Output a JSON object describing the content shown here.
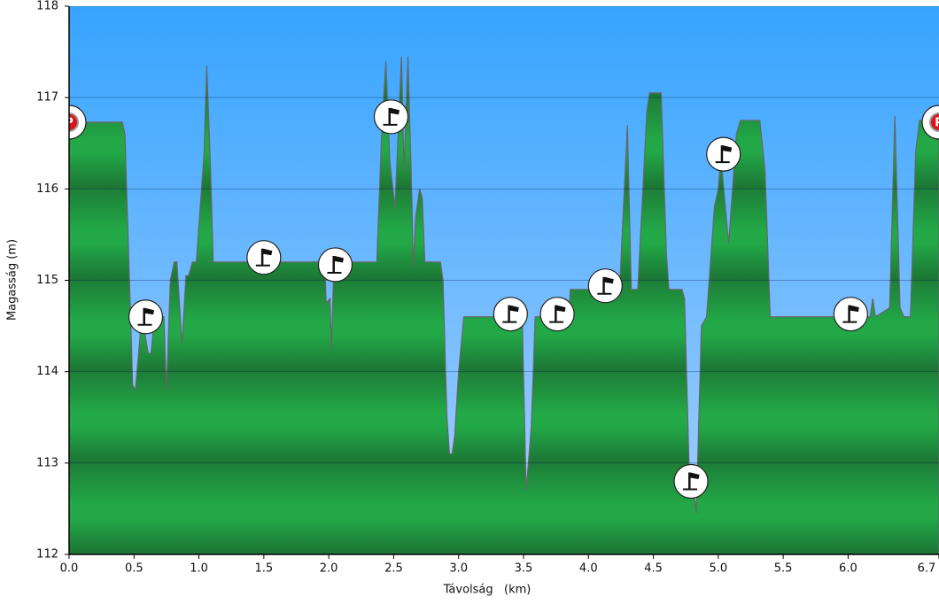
{
  "chart_data": {
    "type": "area",
    "xlabel": "Távolság   (km)",
    "ylabel": "Magasság (m)",
    "x": [
      0,
      0.41,
      0.43,
      0.49,
      0.51,
      0.56,
      0.61,
      0.63,
      0.66,
      0.73,
      0.75,
      0.78,
      0.81,
      0.83,
      0.87,
      0.9,
      0.92,
      0.95,
      0.98,
      1.04,
      1.06,
      1.09,
      1.11,
      1.97,
      1.98,
      2.01,
      2.02,
      2.04,
      2.37,
      2.41,
      2.44,
      2.47,
      2.51,
      2.56,
      2.58,
      2.61,
      2.64,
      2.65,
      2.67,
      2.7,
      2.72,
      2.74,
      2.86,
      2.88,
      2.91,
      2.93,
      2.95,
      2.97,
      3.0,
      3.04,
      3.49,
      3.52,
      3.56,
      3.59,
      3.85,
      3.86,
      4.24,
      4.3,
      4.33,
      4.38,
      4.45,
      4.47,
      4.56,
      4.6,
      4.62,
      4.72,
      4.74,
      4.78,
      4.82,
      4.83,
      4.87,
      4.91,
      4.97,
      5.0,
      5.02,
      5.08,
      5.14,
      5.17,
      5.32,
      5.36,
      5.4,
      6.17,
      6.19,
      6.21,
      6.32,
      6.36,
      6.4,
      6.43,
      6.48,
      6.52,
      6.55,
      6.7
    ],
    "values": [
      116.73,
      116.73,
      116.6,
      113.85,
      113.8,
      114.6,
      114.2,
      114.2,
      114.6,
      114.6,
      113.8,
      115.0,
      115.2,
      115.2,
      114.3,
      115.05,
      115.05,
      115.2,
      115.2,
      116.4,
      117.35,
      116.2,
      115.2,
      115.2,
      114.75,
      114.8,
      114.25,
      115.2,
      115.2,
      116.7,
      117.4,
      116.3,
      115.8,
      117.45,
      116.2,
      117.45,
      115.9,
      115.15,
      115.7,
      116.0,
      115.9,
      115.2,
      115.2,
      115.0,
      113.5,
      113.1,
      113.1,
      113.3,
      114.0,
      114.6,
      114.6,
      112.7,
      113.4,
      114.6,
      114.6,
      114.9,
      114.9,
      116.7,
      114.9,
      114.9,
      116.85,
      117.05,
      117.05,
      115.3,
      114.9,
      114.9,
      114.8,
      112.7,
      112.6,
      112.45,
      114.5,
      114.6,
      115.8,
      116.0,
      116.35,
      115.4,
      116.6,
      116.75,
      116.75,
      116.2,
      114.6,
      114.6,
      114.8,
      114.6,
      114.7,
      116.8,
      114.7,
      114.6,
      114.6,
      116.4,
      116.75,
      116.75
    ],
    "color": "#22a847",
    "xlim": [
      0,
      6.7
    ],
    "ylim": [
      112,
      118
    ],
    "xticks": [
      {
        "value": 0,
        "label": "0.0"
      },
      0.5,
      {
        "value": 1,
        "label": "1.0"
      },
      1.5,
      {
        "value": 2,
        "label": "2.0"
      },
      2.5,
      {
        "value": 3,
        "label": "3.0"
      },
      3.5,
      {
        "value": 4,
        "label": "4.0"
      },
      4.5,
      {
        "value": 5,
        "label": "5.0"
      },
      5.5,
      {
        "value": 6,
        "label": "6.0"
      },
      6.7
    ],
    "yticks": [
      112,
      113,
      114,
      115,
      116,
      117,
      118
    ],
    "grid": true,
    "parking_label": "P",
    "parking": {
      "x": [
        0,
        6.7
      ],
      "y": [
        116.73,
        116.73
      ]
    },
    "waypoints": {
      "x": [
        0.59,
        1.5,
        2.05,
        2.48,
        3.4,
        3.76,
        4.13,
        4.79,
        5.04,
        6.02
      ],
      "y": [
        114.6,
        115.25,
        115.17,
        116.79,
        114.63,
        114.63,
        114.94,
        112.8,
        116.38,
        114.63
      ]
    }
  }
}
